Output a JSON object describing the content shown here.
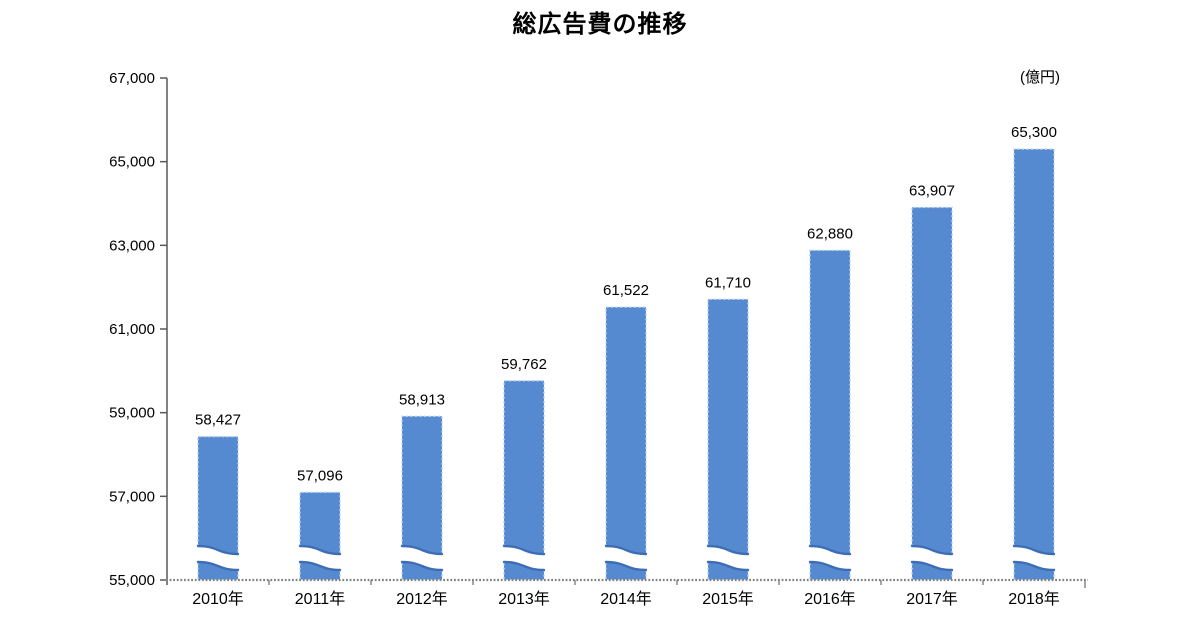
{
  "page": {
    "title": "総広告費の推移",
    "unit_label": "(億円)"
  },
  "chart_data": {
    "type": "bar",
    "title": "総広告費の推移",
    "unit": "億円",
    "categories": [
      "2010年",
      "2011年",
      "2012年",
      "2013年",
      "2014年",
      "2015年",
      "2016年",
      "2017年",
      "2018年"
    ],
    "values": [
      58427,
      57096,
      58913,
      59762,
      61522,
      61710,
      62880,
      63907,
      65300
    ],
    "data_labels": [
      "58,427",
      "57,096",
      "58,913",
      "59,762",
      "61,522",
      "61,710",
      "62,880",
      "63,907",
      "65,300"
    ],
    "xlabel": "",
    "ylabel": "億円",
    "ylim": [
      55000,
      67000
    ],
    "yticks": [
      55000,
      57000,
      59000,
      61000,
      63000,
      65000,
      67000
    ],
    "ytick_labels": [
      "55,000",
      "57,000",
      "59,000",
      "61,000",
      "63,000",
      "65,000",
      "67,000"
    ],
    "axis_break_at_bottom": true,
    "grid": false,
    "legend": false,
    "colors": {
      "bar_fill": "#5589d0",
      "bar_wave_stroke": "#3d6db5",
      "bar_dash_border": "#b9d0ee",
      "axis": "#595959",
      "baseline": "#808080",
      "text": "#000000"
    }
  }
}
